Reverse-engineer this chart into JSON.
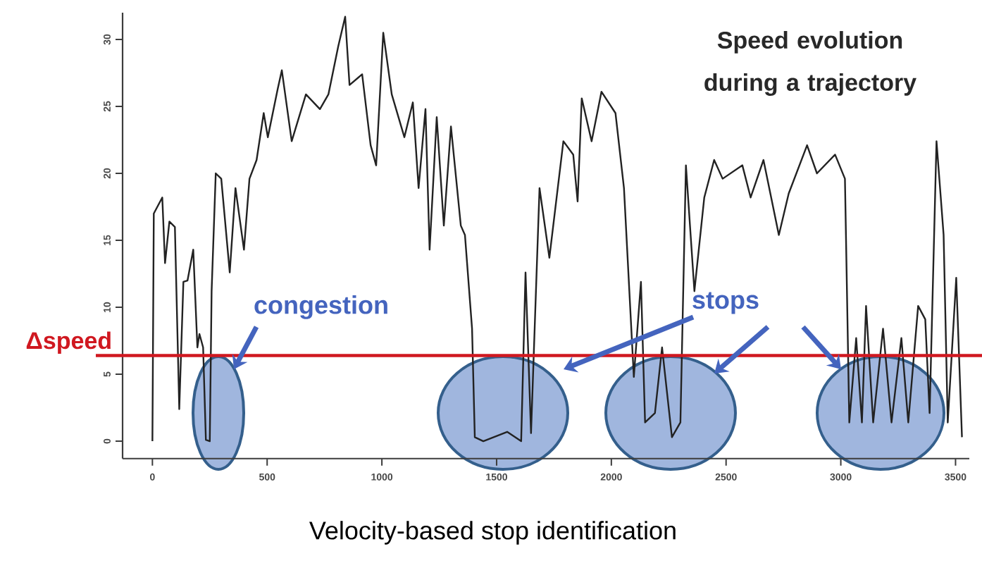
{
  "chart_data": {
    "type": "line",
    "title": "Speed evolution during a trajectory",
    "annotations": [
      "Velocity-based stop identification",
      "congestion",
      "stops"
    ],
    "x": [
      0,
      6,
      43,
      55,
      74,
      98,
      117,
      135,
      153,
      178,
      196,
      205,
      221,
      233,
      250,
      258,
      276,
      300,
      337,
      362,
      399,
      423,
      454,
      485,
      503,
      546,
      564,
      607,
      669,
      730,
      767,
      810,
      840,
      859,
      914,
      951,
      975,
      1006,
      1043,
      1098,
      1135,
      1160,
      1190,
      1208,
      1239,
      1270,
      1301,
      1344,
      1362,
      1393,
      1405,
      1442,
      1546,
      1607,
      1626,
      1650,
      1687,
      1730,
      1791,
      1834,
      1853,
      1871,
      1914,
      1957,
      2018,
      2055,
      2098,
      2129,
      2147,
      2190,
      2221,
      2264,
      2301,
      2325,
      2362,
      2405,
      2448,
      2485,
      2571,
      2607,
      2663,
      2730,
      2773,
      2853,
      2896,
      2975,
      3018,
      3037,
      3067,
      3092,
      3110,
      3141,
      3184,
      3221,
      3264,
      3294,
      3337,
      3368,
      3387,
      3417,
      3448,
      3466,
      3503,
      3528
    ],
    "series": [
      {
        "color": "#222222",
        "values": [
          0,
          17,
          18.2,
          13.3,
          16.4,
          16,
          2.4,
          11.9,
          12,
          14.3,
          7,
          8,
          7,
          0.1,
          0,
          11.2,
          20,
          19.6,
          12.6,
          18.9,
          14.3,
          19.6,
          21,
          24.5,
          22.7,
          26.3,
          27.7,
          22.4,
          25.9,
          24.8,
          25.9,
          29.5,
          31.7,
          26.6,
          27.4,
          22.1,
          20.6,
          30.5,
          25.9,
          22.7,
          25.3,
          18.9,
          24.8,
          14.3,
          24.2,
          16.1,
          23.5,
          16.1,
          15.4,
          8.4,
          0.3,
          0,
          0.7,
          0,
          12.6,
          0.6,
          18.9,
          13.7,
          22.4,
          21.4,
          17.9,
          25.6,
          22.4,
          26.1,
          24.5,
          18.9,
          4.8,
          11.9,
          1.4,
          2.1,
          7,
          0.3,
          1.4,
          20.6,
          11.2,
          18.2,
          21,
          19.6,
          20.6,
          18.2,
          21,
          15.4,
          18.5,
          22.1,
          20,
          21.4,
          19.6,
          1.4,
          7.7,
          1.4,
          10.1,
          1.4,
          8.4,
          1.4,
          7.7,
          1.4,
          10.1,
          9.1,
          2.1,
          22.4,
          15.4,
          1.4,
          12.2,
          0.3
        ]
      }
    ],
    "xlim": [
      -130,
      3560
    ],
    "ylim": [
      -1.3,
      32
    ],
    "xticks": [
      0,
      500,
      1000,
      1500,
      2000,
      2500,
      3000,
      3500
    ],
    "yticks": [
      0,
      5,
      10,
      15,
      20,
      25,
      30
    ],
    "ref_lines": [
      {
        "axis": "y",
        "value": 6.4,
        "label": "Δspeed",
        "color": "#d01820"
      }
    ]
  }
}
